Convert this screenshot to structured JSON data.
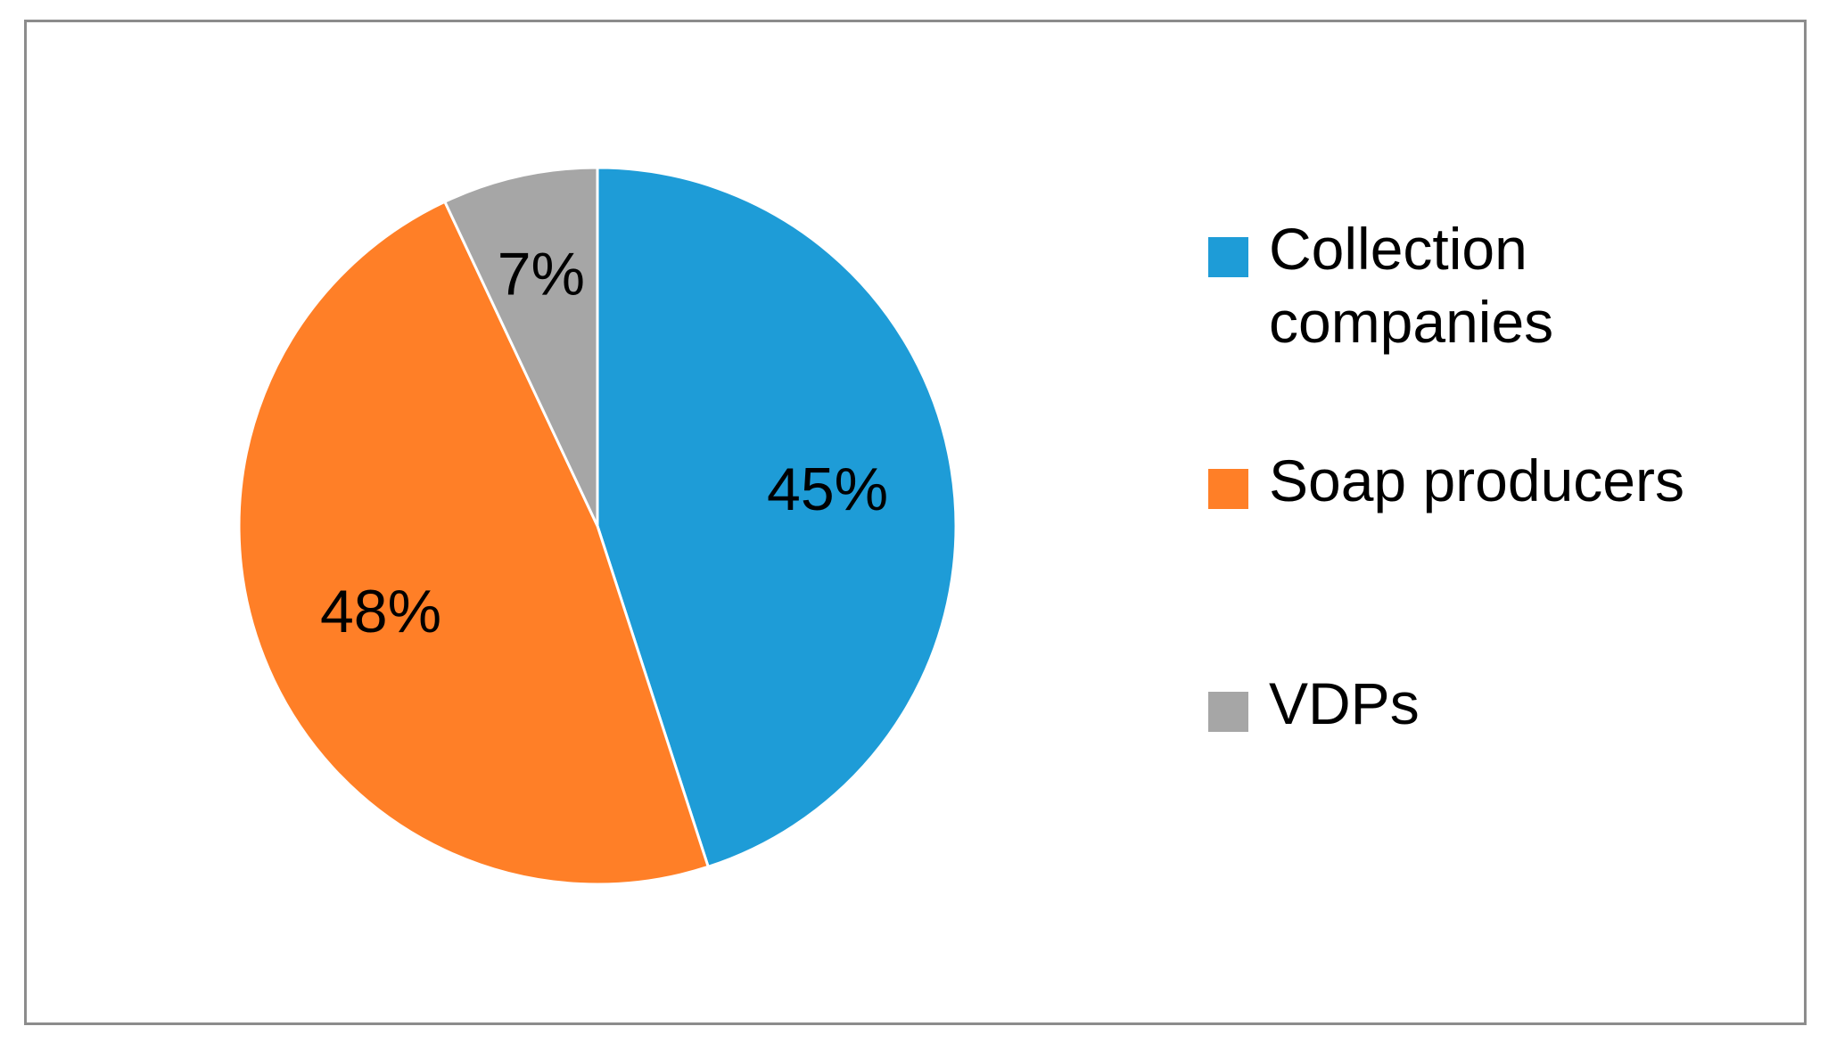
{
  "chart_data": {
    "type": "pie",
    "title": "",
    "series": [
      {
        "categories": [
          "Collection companies",
          "Soap producers",
          "VDPs"
        ],
        "values": [
          45,
          48,
          7
        ],
        "labels": [
          "45%",
          "48%",
          "7%"
        ],
        "colors": [
          "#1E9CD7",
          "#FF7F27",
          "#A6A6A6"
        ]
      }
    ],
    "legend": {
      "placement": "right",
      "entries": [
        "Collection companies",
        "Soap producers",
        "VDPs"
      ]
    },
    "start_angle": "12 o'clock",
    "direction": "clockwise"
  }
}
